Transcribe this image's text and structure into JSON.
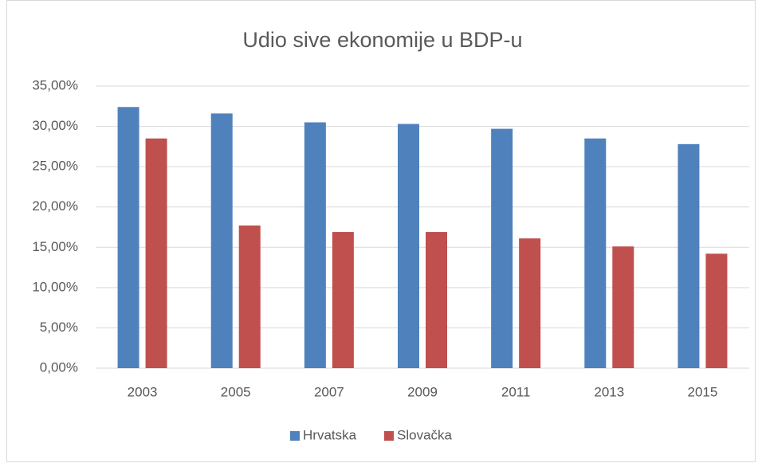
{
  "chart_data": {
    "type": "bar",
    "title": "Udio sive ekonomije u BDP-u",
    "categories": [
      "2003",
      "2005",
      "2007",
      "2009",
      "2011",
      "2013",
      "2015"
    ],
    "series": [
      {
        "name": "Hrvatska",
        "color": "#4f81bd",
        "values": [
          32.4,
          31.6,
          30.5,
          30.3,
          29.7,
          28.5,
          27.8
        ]
      },
      {
        "name": "Slovačka",
        "color": "#c0504d",
        "values": [
          28.5,
          17.7,
          16.9,
          16.9,
          16.1,
          15.1,
          14.2
        ]
      }
    ],
    "ylim": [
      0,
      35
    ],
    "yticks": [
      {
        "value": 0,
        "label": "0,00%"
      },
      {
        "value": 5,
        "label": "5,00%"
      },
      {
        "value": 10,
        "label": "10,00%"
      },
      {
        "value": 15,
        "label": "15,00%"
      },
      {
        "value": 20,
        "label": "20,00%"
      },
      {
        "value": 25,
        "label": "25,00%"
      },
      {
        "value": 30,
        "label": "30,00%"
      },
      {
        "value": 35,
        "label": "35,00%"
      }
    ],
    "grid": true,
    "legend": "bottom"
  }
}
